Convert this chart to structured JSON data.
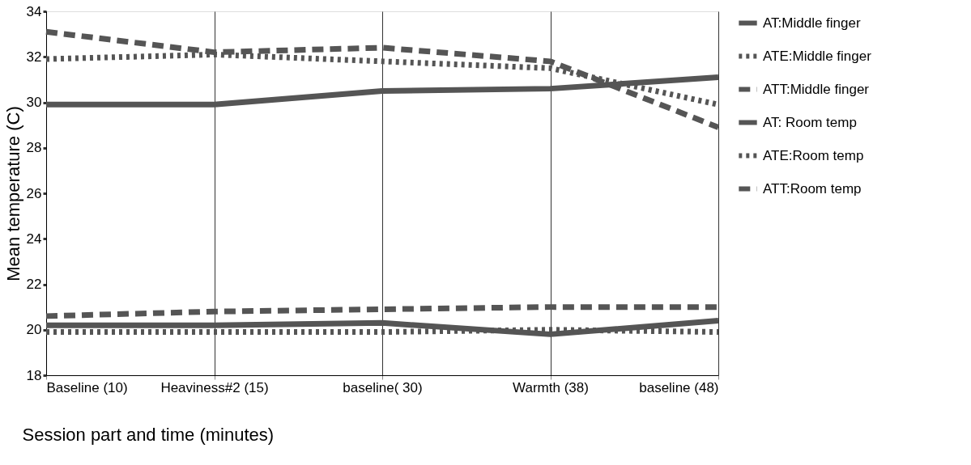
{
  "chart_data": {
    "type": "line",
    "xlabel": "Session part and time (minutes)",
    "ylabel": "Mean temperature (C)",
    "categories": [
      "Baseline (10)",
      "Heaviness#2 (15)",
      "baseline( 30)",
      "Warmth (38)",
      "baseline (48)"
    ],
    "ylim": [
      18,
      34
    ],
    "yticks": [
      18,
      20,
      22,
      24,
      26,
      28,
      30,
      32,
      34
    ],
    "grid": "x",
    "legend": "right",
    "marker": "none",
    "series": [
      {
        "name": "AT:Middle finger",
        "color": "#555555",
        "line_style": "solid",
        "values": [
          29.9,
          29.9,
          30.5,
          30.6,
          31.1
        ]
      },
      {
        "name": "ATE:Middle finger",
        "color": "#555555",
        "line_style": "dotted",
        "values": [
          31.9,
          32.1,
          31.8,
          31.5,
          29.9
        ]
      },
      {
        "name": "ATT:Middle finger",
        "color": "#555555",
        "line_style": "dashed",
        "values": [
          33.1,
          32.2,
          32.4,
          31.8,
          28.9
        ]
      },
      {
        "name": "AT: Room temp",
        "color": "#555555",
        "line_style": "solid",
        "values": [
          20.2,
          20.2,
          20.3,
          19.8,
          20.4
        ]
      },
      {
        "name": "ATE:Room temp",
        "color": "#555555",
        "line_style": "dotted",
        "values": [
          19.9,
          19.9,
          19.9,
          20.0,
          19.9
        ]
      },
      {
        "name": "ATT:Room temp",
        "color": "#555555",
        "line_style": "dashed",
        "values": [
          20.6,
          20.8,
          20.9,
          21.0,
          21.0
        ]
      }
    ]
  }
}
